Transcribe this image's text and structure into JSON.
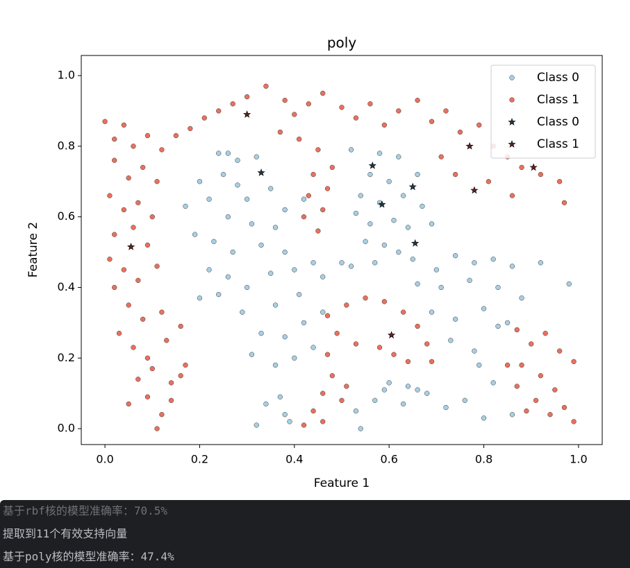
{
  "chart_data": {
    "type": "scatter",
    "title": "poly",
    "xlabel": "Feature 1",
    "ylabel": "Feature 2",
    "xlim": [
      -0.05,
      1.05
    ],
    "ylim": [
      -0.045,
      1.057
    ],
    "xticks": [
      {
        "value": 0,
        "label": "0.0"
      },
      {
        "value": 0.2,
        "label": "0.2"
      },
      {
        "value": 0.4,
        "label": "0.4"
      },
      {
        "value": 0.6,
        "label": "0.6"
      },
      {
        "value": 0.8,
        "label": "0.8"
      },
      {
        "value": 1,
        "label": "1.0"
      }
    ],
    "yticks": [
      {
        "value": 0,
        "label": "0.0"
      },
      {
        "value": 0.2,
        "label": "0.2"
      },
      {
        "value": 0.4,
        "label": "0.4"
      },
      {
        "value": 0.6,
        "label": "0.6"
      },
      {
        "value": 0.8,
        "label": "0.8"
      },
      {
        "value": 1,
        "label": "1.0"
      }
    ],
    "legend": "upper right",
    "series": [
      {
        "name": "Class 0",
        "color": "#9ecae1",
        "marker": "o",
        "x": [
          0.24,
          0.26,
          0.28,
          0.32,
          0.25,
          0.28,
          0.2,
          0.22,
          0.17,
          0.3,
          0.35,
          0.38,
          0.42,
          0.26,
          0.31,
          0.36,
          0.19,
          0.23,
          0.27,
          0.33,
          0.38,
          0.22,
          0.26,
          0.3,
          0.35,
          0.4,
          0.44,
          0.2,
          0.24,
          0.29,
          0.36,
          0.41,
          0.46,
          0.5,
          0.33,
          0.38,
          0.42,
          0.46,
          0.31,
          0.36,
          0.4,
          0.44,
          0.37,
          0.38,
          0.34,
          0.32,
          0.39,
          0.52,
          0.58,
          0.62,
          0.56,
          0.6,
          0.66,
          0.54,
          0.58,
          0.63,
          0.67,
          0.53,
          0.56,
          0.61,
          0.64,
          0.69,
          0.55,
          0.59,
          0.62,
          0.52,
          0.57,
          0.65,
          0.7,
          0.74,
          0.78,
          0.82,
          0.86,
          0.92,
          0.66,
          0.71,
          0.77,
          0.83,
          0.88,
          0.98,
          0.69,
          0.74,
          0.8,
          0.85,
          0.73,
          0.78,
          0.83,
          0.79,
          0.82,
          0.76,
          0.72,
          0.8,
          0.86,
          0.6,
          0.64,
          0.68,
          0.57,
          0.53,
          0.54,
          0.63,
          0.66,
          0.59
        ],
        "values": [
          0.78,
          0.78,
          0.76,
          0.77,
          0.72,
          0.69,
          0.7,
          0.65,
          0.63,
          0.65,
          0.68,
          0.62,
          0.65,
          0.6,
          0.58,
          0.57,
          0.55,
          0.53,
          0.5,
          0.52,
          0.5,
          0.45,
          0.43,
          0.4,
          0.44,
          0.45,
          0.47,
          0.37,
          0.38,
          0.33,
          0.35,
          0.38,
          0.43,
          0.47,
          0.27,
          0.26,
          0.3,
          0.33,
          0.21,
          0.18,
          0.2,
          0.23,
          0.09,
          0.04,
          0.07,
          0.01,
          0.02,
          0.79,
          0.78,
          0.77,
          0.72,
          0.7,
          0.72,
          0.66,
          0.64,
          0.66,
          0.63,
          0.61,
          0.58,
          0.59,
          0.57,
          0.58,
          0.53,
          0.52,
          0.5,
          0.46,
          0.47,
          0.48,
          0.45,
          0.49,
          0.47,
          0.48,
          0.46,
          0.47,
          0.41,
          0.4,
          0.42,
          0.4,
          0.37,
          0.41,
          0.33,
          0.31,
          0.34,
          0.3,
          0.25,
          0.22,
          0.29,
          0.18,
          0.13,
          0.08,
          0.06,
          0.03,
          0.04,
          0.13,
          0.12,
          0.1,
          0.08,
          0.05,
          0.0,
          0.07,
          0.11,
          0.11
        ]
      },
      {
        "name": "Class 1",
        "color": "#e8604c",
        "marker": "o",
        "x": [
          0.0,
          0.02,
          0.04,
          0.06,
          0.09,
          0.12,
          0.15,
          0.18,
          0.21,
          0.24,
          0.27,
          0.3,
          0.34,
          0.38,
          0.4,
          0.43,
          0.46,
          0.5,
          0.53,
          0.56,
          0.59,
          0.62,
          0.66,
          0.69,
          0.72,
          0.75,
          0.79,
          0.82,
          0.85,
          0.88,
          0.92,
          0.96,
          0.97,
          0.71,
          0.74,
          0.81,
          0.86,
          0.37,
          0.41,
          0.45,
          0.44,
          0.48,
          0.43,
          0.47,
          0.42,
          0.46,
          0.45,
          0.02,
          0.05,
          0.08,
          0.11,
          0.01,
          0.04,
          0.07,
          0.1,
          0.02,
          0.06,
          0.09,
          0.01,
          0.04,
          0.07,
          0.11,
          0.02,
          0.05,
          0.08,
          0.12,
          0.03,
          0.06,
          0.09,
          0.13,
          0.16,
          0.07,
          0.1,
          0.14,
          0.17,
          0.05,
          0.09,
          0.12,
          0.14,
          0.11,
          0.16,
          0.47,
          0.51,
          0.55,
          0.59,
          0.63,
          0.66,
          0.68,
          0.69,
          0.49,
          0.47,
          0.53,
          0.58,
          0.61,
          0.64,
          0.48,
          0.51,
          0.46,
          0.44,
          0.42,
          0.46,
          0.5,
          0.87,
          0.9,
          0.93,
          0.96,
          0.99,
          0.88,
          0.92,
          0.95,
          0.91,
          0.94,
          0.97,
          0.99,
          0.87,
          0.85,
          0.89
        ],
        "values": [
          0.87,
          0.82,
          0.86,
          0.8,
          0.83,
          0.79,
          0.83,
          0.85,
          0.88,
          0.9,
          0.92,
          0.94,
          0.97,
          0.93,
          0.89,
          0.92,
          0.95,
          0.91,
          0.88,
          0.92,
          0.86,
          0.9,
          0.93,
          0.87,
          0.9,
          0.84,
          0.86,
          0.8,
          0.77,
          0.74,
          0.72,
          0.7,
          0.64,
          0.77,
          0.72,
          0.7,
          0.66,
          0.84,
          0.82,
          0.79,
          0.72,
          0.74,
          0.66,
          0.68,
          0.6,
          0.62,
          0.56,
          0.76,
          0.71,
          0.74,
          0.7,
          0.66,
          0.62,
          0.64,
          0.6,
          0.55,
          0.57,
          0.52,
          0.48,
          0.45,
          0.42,
          0.46,
          0.4,
          0.35,
          0.31,
          0.33,
          0.27,
          0.23,
          0.2,
          0.25,
          0.29,
          0.14,
          0.17,
          0.13,
          0.18,
          0.07,
          0.09,
          0.04,
          0.08,
          0.0,
          0.15,
          0.32,
          0.35,
          0.37,
          0.36,
          0.33,
          0.29,
          0.24,
          0.19,
          0.27,
          0.21,
          0.24,
          0.23,
          0.21,
          0.19,
          0.15,
          0.12,
          0.1,
          0.05,
          0.01,
          0.02,
          0.08,
          0.28,
          0.24,
          0.27,
          0.22,
          0.19,
          0.18,
          0.15,
          0.11,
          0.08,
          0.04,
          0.06,
          0.02,
          0.12,
          0.18,
          0.05
        ]
      },
      {
        "name": "Class 0",
        "color": "#1f3b4d",
        "marker": "*",
        "x": [
          0.33,
          0.565,
          0.585,
          0.65,
          0.655
        ],
        "values": [
          0.725,
          0.745,
          0.635,
          0.685,
          0.525
        ]
      },
      {
        "name": "Class 1",
        "color": "#6b1f1f",
        "marker": "*",
        "x": [
          0.3,
          0.055,
          0.605,
          0.77,
          0.78,
          0.905
        ],
        "values": [
          0.89,
          0.515,
          0.265,
          0.8,
          0.675,
          0.74
        ]
      }
    ]
  },
  "console": {
    "lines": [
      "基于rbf核的模型准确率：70.5%",
      "提取到11个有效支持向量",
      "基于poly核的模型准确率：47.4%"
    ]
  }
}
